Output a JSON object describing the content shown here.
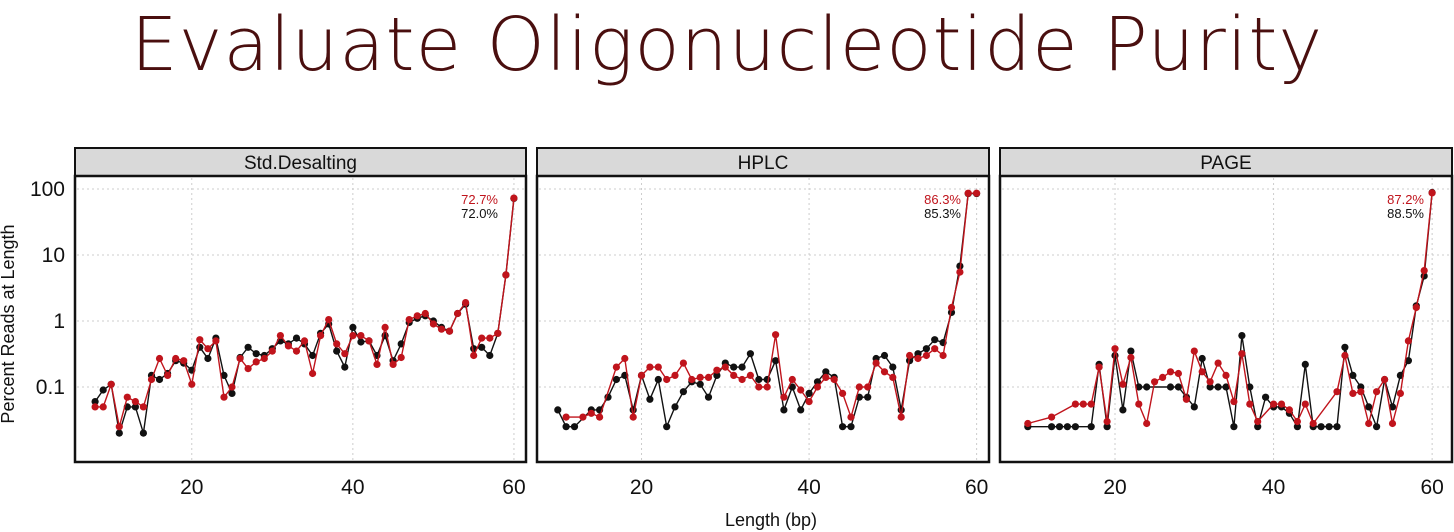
{
  "title": "Evaluate Oligonucleotide Purity",
  "colors": {
    "title": "#4a0f0f",
    "series_red": "#c0141c",
    "series_black": "#111111",
    "strip_bg": "#d9d9d9",
    "grid": "#cccccc"
  },
  "chart_data": {
    "type": "line",
    "xlabel": "Length (bp)",
    "ylabel": "Percent Reads at Length",
    "yscale": "log",
    "ylim": [
      0.01,
      150
    ],
    "yticks": [
      0.1,
      1,
      10,
      100
    ],
    "ytick_labels": [
      "0.1",
      "1",
      "10",
      "100"
    ],
    "xticks": [
      20,
      40,
      60
    ],
    "xtick_labels": [
      "20",
      "40",
      "60"
    ],
    "grid": true,
    "panels": [
      {
        "title": "Std.Desalting",
        "xlim": [
          6,
          61
        ],
        "annotations": [
          {
            "text": "72.7%",
            "color": "red"
          },
          {
            "text": "72.0%",
            "color": "black"
          }
        ],
        "series": [
          {
            "color": "black",
            "x": [
              8,
              9,
              10,
              11,
              12,
              13,
              14,
              15,
              16,
              17,
              18,
              19,
              20,
              21,
              22,
              23,
              24,
              25,
              26,
              27,
              28,
              29,
              30,
              31,
              32,
              33,
              34,
              35,
              36,
              37,
              38,
              39,
              40,
              41,
              42,
              43,
              44,
              45,
              46,
              47,
              48,
              49,
              50,
              51,
              52,
              53,
              54,
              55,
              56,
              57,
              58,
              59,
              60
            ],
            "y": [
              0.06,
              0.09,
              0.11,
              0.02,
              0.05,
              0.05,
              0.02,
              0.15,
              0.13,
              0.16,
              0.25,
              0.23,
              0.18,
              0.4,
              0.27,
              0.55,
              0.15,
              0.08,
              0.28,
              0.4,
              0.32,
              0.3,
              0.38,
              0.5,
              0.45,
              0.55,
              0.45,
              0.3,
              0.65,
              0.9,
              0.35,
              0.2,
              0.8,
              0.48,
              0.5,
              0.3,
              0.6,
              0.25,
              0.45,
              0.95,
              1.1,
              1.2,
              1,
              0.8,
              0.7,
              1.3,
              1.8,
              0.38,
              0.4,
              0.3,
              0.65,
              5,
              72
            ]
          },
          {
            "color": "red",
            "x": [
              8,
              9,
              10,
              11,
              12,
              13,
              14,
              15,
              16,
              17,
              18,
              19,
              20,
              21,
              22,
              23,
              24,
              25,
              26,
              27,
              28,
              29,
              30,
              31,
              32,
              33,
              34,
              35,
              36,
              37,
              38,
              39,
              40,
              41,
              42,
              43,
              44,
              45,
              46,
              47,
              48,
              49,
              50,
              51,
              52,
              53,
              54,
              55,
              56,
              57,
              58,
              59,
              60
            ],
            "y": [
              0.05,
              0.05,
              0.11,
              0.025,
              0.07,
              0.06,
              0.05,
              0.13,
              0.27,
              0.15,
              0.27,
              0.25,
              0.11,
              0.52,
              0.38,
              0.5,
              0.07,
              0.1,
              0.27,
              0.19,
              0.24,
              0.27,
              0.35,
              0.6,
              0.42,
              0.35,
              0.5,
              0.16,
              0.6,
              1.05,
              0.45,
              0.32,
              0.6,
              0.6,
              0.5,
              0.22,
              0.8,
              0.22,
              0.28,
              1.05,
              1.2,
              1.3,
              0.9,
              0.75,
              0.7,
              1.3,
              1.9,
              0.3,
              0.55,
              0.55,
              0.65,
              5,
              72.7
            ]
          }
        ]
      },
      {
        "title": "HPLC",
        "xlim": [
          8,
          61
        ],
        "annotations": [
          {
            "text": "86.3%",
            "color": "red"
          },
          {
            "text": "85.3%",
            "color": "black"
          }
        ],
        "series": [
          {
            "color": "black",
            "x": [
              10,
              11,
              12,
              14,
              15,
              16,
              17,
              18,
              19,
              20,
              21,
              22,
              23,
              24,
              25,
              26,
              27,
              28,
              29,
              30,
              31,
              32,
              33,
              34,
              35,
              36,
              37,
              38,
              39,
              40,
              41,
              42,
              43,
              44,
              45,
              46,
              47,
              48,
              49,
              50,
              51,
              52,
              53,
              54,
              55,
              56,
              57,
              58,
              59,
              60
            ],
            "y": [
              0.045,
              0.025,
              0.025,
              0.045,
              0.045,
              0.07,
              0.13,
              0.15,
              0.045,
              0.15,
              0.065,
              0.13,
              0.025,
              0.05,
              0.085,
              0.12,
              0.11,
              0.07,
              0.15,
              0.23,
              0.2,
              0.2,
              0.32,
              0.13,
              0.13,
              0.25,
              0.045,
              0.1,
              0.045,
              0.08,
              0.12,
              0.17,
              0.14,
              0.025,
              0.025,
              0.07,
              0.07,
              0.27,
              0.3,
              0.2,
              0.045,
              0.25,
              0.32,
              0.38,
              0.52,
              0.47,
              1.35,
              6.8,
              85.3,
              85.3
            ]
          },
          {
            "color": "red",
            "x": [
              11,
              13,
              14,
              15,
              17,
              18,
              19,
              20,
              21,
              22,
              23,
              24,
              25,
              26,
              27,
              28,
              29,
              30,
              31,
              32,
              33,
              34,
              35,
              36,
              37,
              38,
              39,
              40,
              41,
              42,
              43,
              44,
              45,
              46,
              47,
              48,
              49,
              50,
              51,
              52,
              53,
              54,
              55,
              56,
              57,
              58,
              59,
              60
            ],
            "y": [
              0.035,
              0.035,
              0.04,
              0.035,
              0.2,
              0.27,
              0.035,
              0.15,
              0.2,
              0.2,
              0.13,
              0.15,
              0.23,
              0.13,
              0.14,
              0.14,
              0.18,
              0.2,
              0.15,
              0.13,
              0.15,
              0.1,
              0.1,
              0.62,
              0.07,
              0.13,
              0.09,
              0.06,
              0.1,
              0.14,
              0.13,
              0.08,
              0.035,
              0.1,
              0.1,
              0.23,
              0.17,
              0.14,
              0.035,
              0.3,
              0.27,
              0.3,
              0.38,
              0.3,
              1.6,
              5.5,
              86.3,
              86.3
            ]
          }
        ]
      },
      {
        "title": "PAGE",
        "xlim": [
          6,
          62
        ],
        "annotations": [
          {
            "text": "87.2%",
            "color": "red"
          },
          {
            "text": "88.5%",
            "color": "black"
          }
        ],
        "series": [
          {
            "color": "black",
            "x": [
              9,
              12,
              13,
              14,
              15,
              17,
              18,
              19,
              20,
              21,
              22,
              23,
              24,
              27,
              28,
              29,
              30,
              31,
              32,
              33,
              34,
              35,
              36,
              37,
              38,
              39,
              40,
              41,
              42,
              43,
              44,
              45,
              46,
              47,
              48,
              49,
              50,
              51,
              52,
              53,
              54,
              55,
              56,
              57,
              58,
              59,
              60
            ],
            "y": [
              0.025,
              0.025,
              0.025,
              0.025,
              0.025,
              0.025,
              0.22,
              0.025,
              0.3,
              0.045,
              0.35,
              0.1,
              0.1,
              0.1,
              0.1,
              0.07,
              0.05,
              0.27,
              0.1,
              0.1,
              0.1,
              0.025,
              0.6,
              0.1,
              0.025,
              0.07,
              0.05,
              0.05,
              0.04,
              0.025,
              0.22,
              0.025,
              0.025,
              0.025,
              0.025,
              0.4,
              0.15,
              0.1,
              0.05,
              0.025,
              0.13,
              0.05,
              0.15,
              0.25,
              1.7,
              4.8,
              88.5
            ]
          },
          {
            "color": "red",
            "x": [
              9,
              12,
              15,
              16,
              17,
              18,
              19,
              20,
              21,
              22,
              23,
              24,
              25,
              26,
              27,
              28,
              29,
              30,
              31,
              32,
              33,
              34,
              35,
              36,
              37,
              38,
              40,
              41,
              42,
              43,
              44,
              45,
              48,
              49,
              50,
              51,
              52,
              53,
              54,
              55,
              56,
              57,
              58,
              59,
              60
            ],
            "y": [
              0.028,
              0.035,
              0.055,
              0.055,
              0.055,
              0.2,
              0.03,
              0.38,
              0.11,
              0.28,
              0.055,
              0.028,
              0.12,
              0.14,
              0.17,
              0.16,
              0.065,
              0.35,
              0.17,
              0.12,
              0.23,
              0.15,
              0.06,
              0.32,
              0.055,
              0.03,
              0.055,
              0.055,
              0.045,
              0.03,
              0.055,
              0.028,
              0.085,
              0.3,
              0.08,
              0.085,
              0.028,
              0.085,
              0.13,
              0.028,
              0.08,
              0.5,
              1.6,
              5.8,
              87.2
            ]
          }
        ]
      }
    ]
  }
}
